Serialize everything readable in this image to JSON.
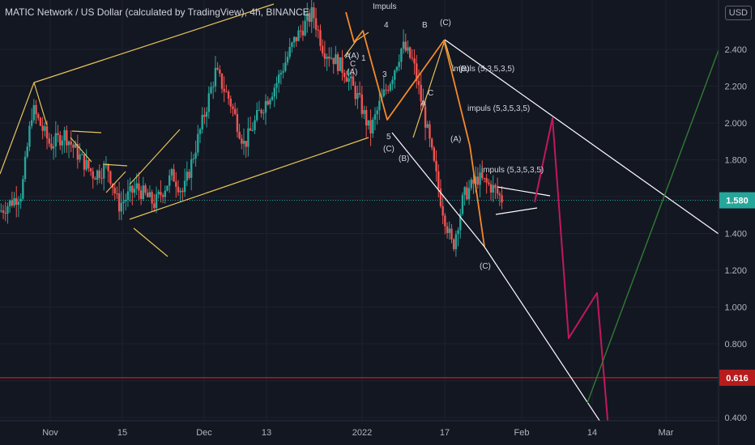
{
  "header": {
    "title": "MATIC Network / US Dollar (calculated by TradingView), 4h, BINANCE",
    "currency": "USD"
  },
  "colors": {
    "background": "#131722",
    "up_candle": "#26a69a",
    "down_candle": "#ef5350",
    "channel": "#e6c45a",
    "wave": "#f5892a",
    "downtrend": "#ffffff",
    "projection": "#c2185b",
    "uptrend": "#2e7d32",
    "support": "#b71c1c",
    "current_price": "#26a69a"
  },
  "chart_data": {
    "type": "candlestick",
    "x_ticks": [
      "Nov",
      "15",
      "Dec",
      "13",
      "2022",
      "17",
      "Feb",
      "14",
      "Mar"
    ],
    "y_ticks": [
      "2.400",
      "2.200",
      "2.000",
      "1.800",
      "1.600",
      "1.400",
      "1.200",
      "1.000",
      "0.800",
      "0.600",
      "0.400"
    ],
    "ylim": [
      0.4,
      2.5
    ],
    "current_price": 1.58,
    "current_price_label": "1.580",
    "support_level": 0.616,
    "support_label": "0.616",
    "price_path": [
      [
        0,
        1.52
      ],
      [
        0.03,
        1.62
      ],
      [
        0.045,
        2.08
      ],
      [
        0.07,
        1.88
      ],
      [
        0.09,
        1.94
      ],
      [
        0.11,
        1.82
      ],
      [
        0.13,
        1.72
      ],
      [
        0.15,
        1.76
      ],
      [
        0.165,
        1.55
      ],
      [
        0.19,
        1.65
      ],
      [
        0.215,
        1.56
      ],
      [
        0.24,
        1.72
      ],
      [
        0.255,
        1.62
      ],
      [
        0.28,
        1.98
      ],
      [
        0.3,
        2.28
      ],
      [
        0.32,
        2.12
      ],
      [
        0.34,
        1.88
      ],
      [
        0.36,
        2.05
      ],
      [
        0.385,
        2.22
      ],
      [
        0.41,
        2.45
      ],
      [
        0.435,
        2.6
      ],
      [
        0.45,
        2.4
      ],
      [
        0.465,
        2.35
      ],
      [
        0.48,
        2.28
      ],
      [
        0.5,
        2.12
      ],
      [
        0.515,
        1.95
      ],
      [
        0.53,
        2.12
      ],
      [
        0.545,
        2.25
      ],
      [
        0.56,
        2.42
      ],
      [
        0.575,
        2.33
      ],
      [
        0.59,
        2.05
      ],
      [
        0.6,
        1.85
      ],
      [
        0.615,
        1.55
      ],
      [
        0.63,
        1.32
      ],
      [
        0.645,
        1.6
      ],
      [
        0.665,
        1.7
      ],
      [
        0.685,
        1.65
      ],
      [
        0.7,
        1.58
      ]
    ],
    "annotations": [
      {
        "text": "Impuls",
        "price": 2.6
      },
      {
        "text": "4",
        "price": 2.53
      },
      {
        "text": "(A)",
        "price": 2.37
      },
      {
        "text": "A",
        "price": 2.32
      },
      {
        "text": "C",
        "price": 2.28
      },
      {
        "text": "(A)",
        "price": 2.18
      },
      {
        "text": "1",
        "price": 2.34
      },
      {
        "text": "3",
        "price": 2.19
      },
      {
        "text": "5",
        "price": 1.95
      },
      {
        "text": "(C)",
        "price": 1.88
      },
      {
        "text": "(B)",
        "price": 1.81
      },
      {
        "text": "B",
        "price": 2.53
      },
      {
        "text": "(C)",
        "price": 2.54
      },
      {
        "text": "A",
        "price": 2.22
      },
      {
        "text": "C",
        "price": 2.16
      },
      {
        "text": "(B)",
        "price": 2.3
      },
      {
        "text": "impuls (5,3,5,3,5)",
        "price": 2.3
      },
      {
        "text": "impuls (5,3,5,3,5)",
        "price": 2.1
      },
      {
        "text": "(A)",
        "price": 1.92
      },
      {
        "text": "impuls (5,3,5,3,5)",
        "price": 1.78
      },
      {
        "text": "(C)",
        "price": 1.26
      }
    ]
  }
}
